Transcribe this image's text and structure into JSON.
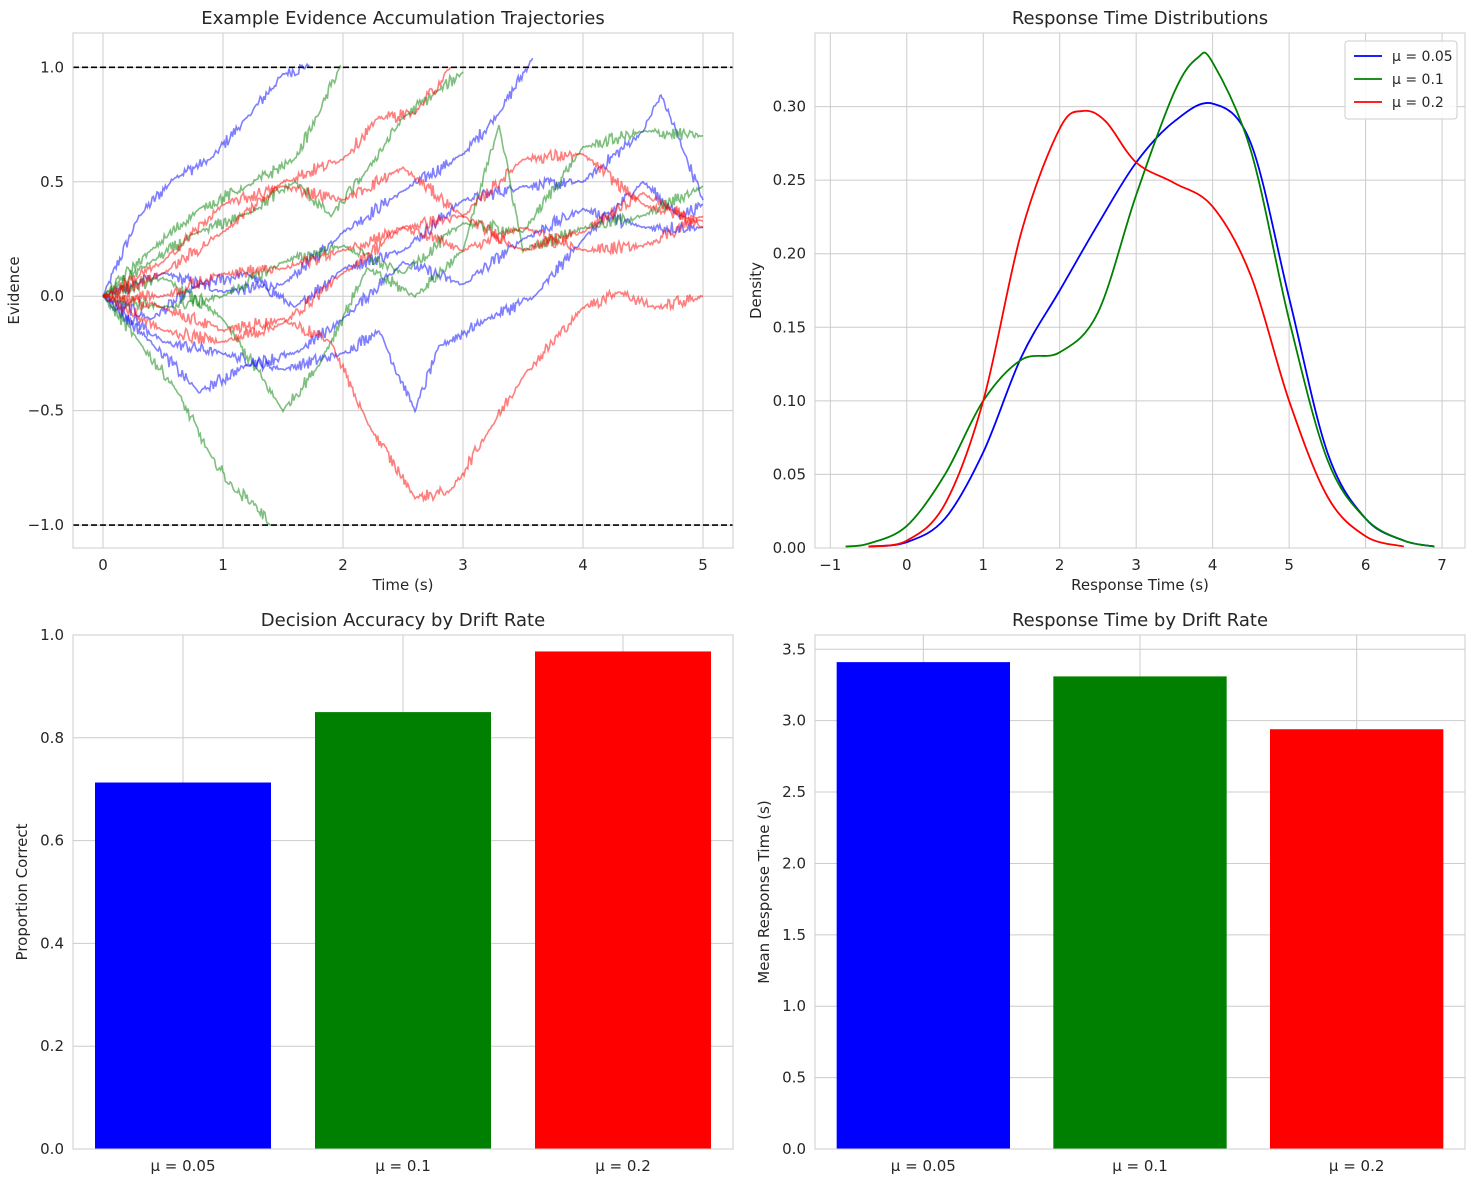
{
  "chart_data": [
    {
      "type": "line",
      "title": "Example Evidence Accumulation Trajectories",
      "xlabel": "Time (s)",
      "ylabel": "Evidence",
      "xlim": [
        -0.25,
        5.25
      ],
      "ylim": [
        -1.1,
        1.15
      ],
      "xticks": [
        0,
        1,
        2,
        3,
        4,
        5
      ],
      "xtick_labels": [
        "0",
        "1",
        "2",
        "3",
        "4",
        "5"
      ],
      "yticks": [
        -1.0,
        -0.5,
        0.0,
        0.5,
        1.0
      ],
      "ytick_labels": [
        "−1.0",
        "−0.5",
        "0.0",
        "0.5",
        "1.0"
      ],
      "thresholds": [
        1.0,
        -1.0
      ],
      "grid": true,
      "series": [
        {
          "name": "μ = 0.05",
          "color": "#0000ff",
          "points": [
            [
              0,
              0
            ],
            [
              0.3,
              0.35
            ],
            [
              0.6,
              0.52
            ],
            [
              0.9,
              0.6
            ],
            [
              1.2,
              0.78
            ],
            [
              1.5,
              0.97
            ],
            [
              1.72,
              1.01
            ]
          ]
        },
        {
          "name": "μ = 0.05",
          "color": "#0000ff",
          "points": [
            [
              0,
              0
            ],
            [
              0.5,
              0.1
            ],
            [
              1.0,
              0.02
            ],
            [
              1.5,
              0.05
            ],
            [
              2.0,
              0.28
            ],
            [
              2.5,
              0.46
            ],
            [
              3.0,
              0.62
            ],
            [
              3.3,
              0.8
            ],
            [
              3.58,
              1.04
            ]
          ]
        },
        {
          "name": "μ = 0.05",
          "color": "#0000ff",
          "points": [
            [
              0,
              0
            ],
            [
              0.4,
              -0.1
            ],
            [
              0.8,
              0.05
            ],
            [
              1.2,
              0.1
            ],
            [
              1.6,
              -0.05
            ],
            [
              2.0,
              0.12
            ],
            [
              2.5,
              0.2
            ],
            [
              3.0,
              0.42
            ],
            [
              3.5,
              0.48
            ],
            [
              4.0,
              0.5
            ],
            [
              4.5,
              0.72
            ],
            [
              4.65,
              0.88
            ],
            [
              4.85,
              0.62
            ],
            [
              5.0,
              0.42
            ]
          ]
        },
        {
          "name": "μ = 0.05",
          "color": "#0000ff",
          "points": [
            [
              0,
              0
            ],
            [
              0.5,
              -0.2
            ],
            [
              1.0,
              -0.25
            ],
            [
              1.5,
              -0.32
            ],
            [
              2.0,
              -0.25
            ],
            [
              2.3,
              -0.15
            ],
            [
              2.6,
              -0.5
            ],
            [
              2.8,
              -0.22
            ],
            [
              3.2,
              -0.1
            ],
            [
              3.6,
              0.0
            ],
            [
              4.0,
              0.25
            ],
            [
              4.5,
              0.5
            ],
            [
              4.8,
              0.35
            ],
            [
              5.0,
              0.4
            ]
          ]
        },
        {
          "name": "μ = 0.05",
          "color": "#0000ff",
          "points": [
            [
              0,
              0
            ],
            [
              0.4,
              -0.2
            ],
            [
              0.8,
              -0.42
            ],
            [
              1.2,
              -0.3
            ],
            [
              1.6,
              -0.25
            ],
            [
              2.0,
              -0.1
            ],
            [
              2.5,
              0.15
            ],
            [
              3.0,
              0.05
            ],
            [
              3.5,
              0.25
            ],
            [
              4.0,
              0.38
            ],
            [
              4.5,
              0.3
            ],
            [
              5.0,
              0.3
            ]
          ]
        },
        {
          "name": "μ = 0.1",
          "color": "#008000",
          "points": [
            [
              0,
              0
            ],
            [
              0.3,
              -0.2
            ],
            [
              0.6,
              -0.4
            ],
            [
              0.9,
              -0.7
            ],
            [
              1.1,
              -0.85
            ],
            [
              1.25,
              -0.9
            ],
            [
              1.4,
              -1.0
            ]
          ]
        },
        {
          "name": "μ = 0.1",
          "color": "#008000",
          "points": [
            [
              0,
              0
            ],
            [
              0.4,
              0.2
            ],
            [
              0.8,
              0.38
            ],
            [
              1.2,
              0.48
            ],
            [
              1.6,
              0.6
            ],
            [
              1.8,
              0.8
            ],
            [
              1.98,
              1.01
            ]
          ]
        },
        {
          "name": "μ = 0.1",
          "color": "#008000",
          "points": [
            [
              0,
              0
            ],
            [
              0.4,
              0.15
            ],
            [
              0.8,
              0.28
            ],
            [
              1.2,
              0.36
            ],
            [
              1.6,
              0.5
            ],
            [
              1.9,
              0.35
            ],
            [
              2.2,
              0.55
            ],
            [
              2.5,
              0.78
            ],
            [
              2.8,
              0.9
            ],
            [
              3.0,
              0.98
            ]
          ]
        },
        {
          "name": "μ = 0.1",
          "color": "#008000",
          "points": [
            [
              0,
              0
            ],
            [
              0.5,
              0.08
            ],
            [
              1.0,
              -0.1
            ],
            [
              1.5,
              -0.5
            ],
            [
              1.8,
              -0.3
            ],
            [
              2.2,
              0.12
            ],
            [
              2.6,
              0.0
            ],
            [
              3.0,
              0.2
            ],
            [
              3.3,
              0.75
            ],
            [
              3.5,
              0.2
            ],
            [
              4.0,
              0.3
            ],
            [
              4.5,
              0.35
            ],
            [
              5.0,
              0.48
            ]
          ]
        },
        {
          "name": "μ = 0.1",
          "color": "#008000",
          "points": [
            [
              0,
              0
            ],
            [
              0.5,
              -0.05
            ],
            [
              1.0,
              0.0
            ],
            [
              1.5,
              0.15
            ],
            [
              2.0,
              0.22
            ],
            [
              2.5,
              0.1
            ],
            [
              3.0,
              0.32
            ],
            [
              3.5,
              0.28
            ],
            [
              4.0,
              0.65
            ],
            [
              4.5,
              0.72
            ],
            [
              5.0,
              0.7
            ]
          ]
        },
        {
          "name": "μ = 0.2",
          "color": "#ff0000",
          "points": [
            [
              0,
              0
            ],
            [
              0.5,
              0.1
            ],
            [
              1.0,
              0.28
            ],
            [
              1.5,
              0.5
            ],
            [
              2.0,
              0.6
            ],
            [
              2.3,
              0.78
            ],
            [
              2.6,
              0.8
            ],
            [
              2.9,
              1.0
            ]
          ]
        },
        {
          "name": "μ = 0.2",
          "color": "#ff0000",
          "points": [
            [
              0,
              0
            ],
            [
              0.5,
              -0.05
            ],
            [
              1.0,
              -0.15
            ],
            [
              1.5,
              -0.1
            ],
            [
              1.9,
              -0.2
            ],
            [
              2.2,
              -0.55
            ],
            [
              2.6,
              -0.88
            ],
            [
              2.9,
              -0.85
            ],
            [
              3.2,
              -0.6
            ],
            [
              3.5,
              -0.35
            ],
            [
              4.0,
              -0.05
            ],
            [
              4.3,
              0.02
            ],
            [
              4.6,
              -0.05
            ],
            [
              5.0,
              0.0
            ]
          ]
        },
        {
          "name": "μ = 0.2",
          "color": "#ff0000",
          "points": [
            [
              0,
              0
            ],
            [
              0.5,
              0.15
            ],
            [
              1.0,
              0.4
            ],
            [
              1.5,
              0.48
            ],
            [
              2.0,
              0.42
            ],
            [
              2.5,
              0.56
            ],
            [
              3.0,
              0.35
            ],
            [
              3.5,
              0.6
            ],
            [
              4.0,
              0.62
            ],
            [
              4.5,
              0.4
            ],
            [
              5.0,
              0.33
            ]
          ]
        },
        {
          "name": "μ = 0.2",
          "color": "#ff0000",
          "points": [
            [
              0,
              0
            ],
            [
              0.5,
              -0.15
            ],
            [
              1.0,
              -0.2
            ],
            [
              1.5,
              -0.12
            ],
            [
              2.0,
              0.1
            ],
            [
              2.5,
              0.3
            ],
            [
              3.0,
              0.35
            ],
            [
              3.5,
              0.2
            ],
            [
              4.0,
              0.28
            ],
            [
              4.5,
              0.45
            ],
            [
              5.0,
              0.3
            ]
          ]
        },
        {
          "name": "μ = 0.2",
          "color": "#ff0000",
          "points": [
            [
              0,
              0
            ],
            [
              0.5,
              0.0
            ],
            [
              1.0,
              0.1
            ],
            [
              1.5,
              0.12
            ],
            [
              2.0,
              0.2
            ],
            [
              2.5,
              0.3
            ],
            [
              3.0,
              0.2
            ],
            [
              3.5,
              0.3
            ],
            [
              4.0,
              0.2
            ],
            [
              4.5,
              0.22
            ],
            [
              5.0,
              0.35
            ]
          ]
        }
      ]
    },
    {
      "type": "line",
      "title": "Response Time Distributions",
      "xlabel": "Response Time (s)",
      "ylabel": "Density",
      "xlim": [
        -1.2,
        7.3
      ],
      "ylim": [
        0,
        0.35
      ],
      "xticks": [
        -1,
        0,
        1,
        2,
        3,
        4,
        5,
        6,
        7
      ],
      "xtick_labels": [
        "−1",
        "0",
        "1",
        "2",
        "3",
        "4",
        "5",
        "6",
        "7"
      ],
      "yticks": [
        0.0,
        0.05,
        0.1,
        0.15,
        0.2,
        0.25,
        0.3
      ],
      "ytick_labels": [
        "0.00",
        "0.05",
        "0.10",
        "0.15",
        "0.20",
        "0.25",
        "0.30"
      ],
      "legend_position": "top-right",
      "grid": true,
      "series": [
        {
          "name": "μ = 0.05",
          "color": "#0000ff",
          "x": [
            -0.5,
            0,
            0.5,
            1,
            1.5,
            2,
            2.5,
            3,
            3.5,
            4,
            4.5,
            5,
            5.5,
            6,
            6.5,
            6.9
          ],
          "y": [
            0.001,
            0.004,
            0.02,
            0.065,
            0.13,
            0.175,
            0.22,
            0.262,
            0.29,
            0.302,
            0.275,
            0.17,
            0.065,
            0.02,
            0.005,
            0.001
          ]
        },
        {
          "name": "μ = 0.1",
          "color": "#008000",
          "x": [
            -0.8,
            -0.5,
            0,
            0.5,
            1,
            1.5,
            2,
            2.5,
            3,
            3.5,
            3.8,
            4,
            4.5,
            5,
            5.5,
            6,
            6.5,
            6.9
          ],
          "y": [
            0.001,
            0.003,
            0.015,
            0.05,
            0.1,
            0.128,
            0.133,
            0.16,
            0.24,
            0.31,
            0.333,
            0.33,
            0.27,
            0.155,
            0.06,
            0.02,
            0.005,
            0.001
          ]
        },
        {
          "name": "μ = 0.2",
          "color": "#ff0000",
          "x": [
            -0.5,
            0,
            0.5,
            1,
            1.5,
            2,
            2.3,
            2.6,
            3,
            3.5,
            4,
            4.5,
            5,
            5.5,
            6,
            6.5
          ],
          "y": [
            0.001,
            0.005,
            0.03,
            0.1,
            0.215,
            0.285,
            0.297,
            0.29,
            0.262,
            0.248,
            0.232,
            0.185,
            0.1,
            0.035,
            0.008,
            0.001
          ]
        }
      ]
    },
    {
      "type": "bar",
      "title": "Decision Accuracy by Drift Rate",
      "xlabel": "",
      "ylabel": "Proportion Correct",
      "categories": [
        "μ = 0.05",
        "μ = 0.1",
        "μ = 0.2"
      ],
      "values": [
        0.713,
        0.85,
        0.968
      ],
      "colors": [
        "#0000ff",
        "#008000",
        "#ff0000"
      ],
      "ylim": [
        0,
        1.0
      ],
      "yticks": [
        0.0,
        0.2,
        0.4,
        0.6,
        0.8,
        1.0
      ],
      "ytick_labels": [
        "0.0",
        "0.2",
        "0.4",
        "0.6",
        "0.8",
        "1.0"
      ],
      "grid": true
    },
    {
      "type": "bar",
      "title": "Response Time by Drift Rate",
      "xlabel": "",
      "ylabel": "Mean Response Time (s)",
      "categories": [
        "μ = 0.05",
        "μ = 0.1",
        "μ = 0.2"
      ],
      "values": [
        3.41,
        3.31,
        2.94
      ],
      "colors": [
        "#0000ff",
        "#008000",
        "#ff0000"
      ],
      "ylim": [
        0,
        3.6
      ],
      "yticks": [
        0.0,
        0.5,
        1.0,
        1.5,
        2.0,
        2.5,
        3.0,
        3.5
      ],
      "ytick_labels": [
        "0.0",
        "0.5",
        "1.0",
        "1.5",
        "2.0",
        "2.5",
        "3.0",
        "3.5"
      ],
      "grid": true
    }
  ]
}
